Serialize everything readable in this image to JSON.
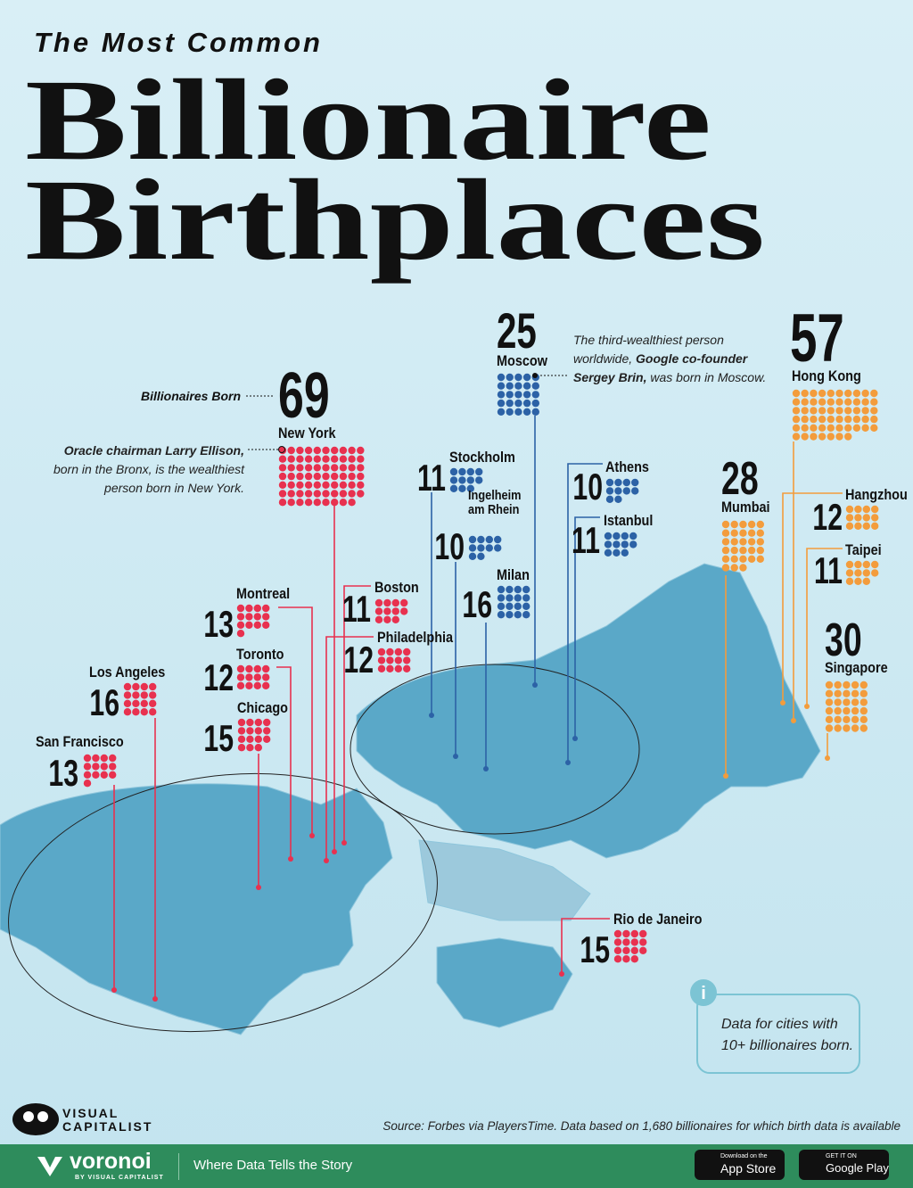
{
  "chart_data": {
    "type": "pictogram-map",
    "kicker": "The Most Common",
    "title": [
      "Billionaire",
      "Birthplaces"
    ],
    "categories": [
      "New York",
      "Moscow",
      "Hong Kong",
      "Stockholm",
      "Athens",
      "Ingelheim am Rhein",
      "Istanbul",
      "Milan",
      "Mumbai",
      "Hangzhou",
      "Taipei",
      "Singapore",
      "Boston",
      "Philadelphia",
      "Montreal",
      "Toronto",
      "Los Angeles",
      "Chicago",
      "San Francisco",
      "Rio de Janeiro"
    ],
    "values": [
      69,
      25,
      57,
      11,
      10,
      10,
      11,
      16,
      28,
      12,
      11,
      30,
      11,
      12,
      13,
      12,
      16,
      15,
      13,
      15
    ],
    "colors": [
      "#e8314f",
      "#2c62a6",
      "#f39c3c",
      "#2c62a6",
      "#2c62a6",
      "#2c62a6",
      "#2c62a6",
      "#2c62a6",
      "#f39c3c",
      "#f39c3c",
      "#f39c3c",
      "#f39c3c",
      "#e8314f",
      "#e8314f",
      "#e8314f",
      "#e8314f",
      "#e8314f",
      "#e8314f",
      "#e8314f",
      "#e8314f"
    ],
    "value_caption": "Billionaires Born",
    "annotations": [
      [
        [
          {
            "text": "Oracle chairman Larry Ellison,",
            "bold": true
          }
        ],
        [
          {
            "text": "born in the Bronx, is the wealthiest",
            "bold": false
          }
        ],
        [
          {
            "text": "person born in New York.",
            "bold": false
          }
        ]
      ],
      [
        [
          {
            "text": "The third-wealthiest person",
            "bold": false
          }
        ],
        [
          {
            "text": "worldwide, ",
            "bold": false
          },
          {
            "text": "Google co-founder",
            "bold": true
          }
        ],
        [
          {
            "text": "Sergey Brin,",
            "bold": true
          },
          {
            "text": " was born in Moscow.",
            "bold": false
          }
        ]
      ]
    ],
    "note": [
      "Data for cities with",
      "10+ billionaires born."
    ],
    "source": "Source: Forbes via PlayersTime. Data based on 1,680 billionaires for which birth data is available"
  },
  "branding": {
    "publisher": [
      "VISUAL",
      "CAPITALIST"
    ],
    "app": "voronoi",
    "app_by": "BY VISUAL CAPITALIST",
    "tagline": "Where Data Tells the Story",
    "app_store": [
      "Download on the",
      "App Store"
    ],
    "google_play": [
      "GET IT ON",
      "Google Play"
    ]
  }
}
